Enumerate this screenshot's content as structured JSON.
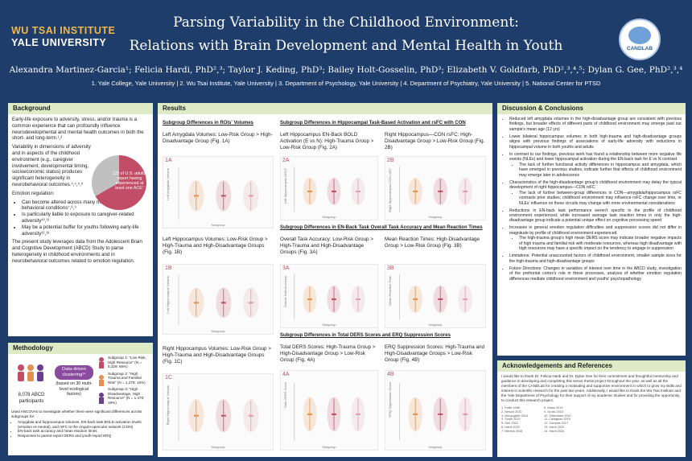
{
  "header": {
    "inst_line1": "WU TSAI INSTITUTE",
    "inst_line2": "YALE UNIVERSITY",
    "title_line1": "Parsing Variability in the Childhood Environment:",
    "title_line2": "Relations with Brain Development and Mental Health in Youth",
    "authors": "Alexandra Martinez-Garcia¹; Felicia Hardi, PhD²,³; Taylor J. Keding, PhD³; Bailey Holt-Gosselin, PhD³; Elizabeth V. Goldfarb, PhD²,³,⁴,⁵; Dylan G. Gee, PhD²,³,⁴",
    "affiliations": "1. Yale College, Yale University | 2. Wu Tsai Institute, Yale University | 3. Department of Psychology, Yale University | 4. Department of Psychiatry, Yale University | 5. National Center for PTSD",
    "logo_text": "CANDLAB"
  },
  "background": {
    "heading": "Background",
    "p1": "Early-life exposure to adversity, stress, and/or trauma is a common experience that can profoundly influence neurodevelopmental and mental health outcomes in both the short- and long-term.¹,²",
    "p2": "Variability in dimensions of adversity and in aspects of the childhood environment (e.g., caregiver involvement, developmental timing, socioeconomic status) produces significant heterogeneity in neurobehavioral outcomes.³,⁴,⁵,⁶",
    "pie_label": "2/3 of U.S. adults report having experienced at least one ACE⁷",
    "reg_heading": "Emotion regulation:",
    "bullets": [
      "Can become altered across many mental health and behavioral conditions⁷,⁸,⁹",
      "Is particularly liable to exposure to caregiver-related adversity¹⁰,¹¹",
      "May be a potential buffer for youths following early-life adversity¹²,¹³"
    ],
    "p3": "The present study leverages data from the Adolescent Brain and Cognitive Development (ABCD) Study to parse heterogeneity in childhood environments and in neurobehavioral outcomes related to emotion regulation."
  },
  "methodology": {
    "heading": "Methodology",
    "participants": "8,078 ABCD participants",
    "clustering": "Data-driven clustering¹⁴",
    "based_on": "(based on 30 multi-level ecological factors)",
    "subgroups": [
      "Subgroup 1: \"Low Risk, High Resource\" (N = 5,329; 66%)",
      "Subgroup 2: \"High Trauma and Familial Risk\" (N = 1,279; 16%)",
      "Subgroup 3: \"High Disadvantage, High Resource\" (N = 1,470; 18%)"
    ],
    "used": "Used ANCOVAs to investigate whether there were significant differences across subgroups for:",
    "items": [
      "Amygdala and hippocampus volumes, EN-back task BOLD activation levels (emotion vs neutral), and rsFC to the cingulo-opercular network (CON)",
      "EN-back task accuracy and mean reaction times",
      "Responses to parent-report DERS and youth-report ERQ"
    ]
  },
  "results": {
    "heading": "Results",
    "sec_rois": "Subgroup Differences in ROIs' Volumes",
    "sec_hippo": "Subgroup Differences in Hippocampal Task-Based Activation and rsFC with CON",
    "sec_enback": "Subgroup Differences in EN-Back Task Overall Task Accuracy and Mean Reaction Times",
    "sec_ders": "Subgroup Differences in Total DERS Scores and ERQ Suppression Scores",
    "figures": [
      {
        "id": "1A",
        "title": "Left Amygdala Volumes: Low-Risk Group > High-Disadvantage Group (Fig. 1A)",
        "ylabel": "Left Amygdala Volume",
        "xlabel": "Subgroup"
      },
      {
        "id": "1B",
        "title": "Left Hippocampus Volumes: Low-Risk Group > High-Trauma and High-Disadvantage Groups (Fig. 1B)",
        "ylabel": "Left Hippocampus Volume",
        "xlabel": "Subgroup"
      },
      {
        "id": "1C",
        "title": "Right Hippocampus Volumes: Low-Risk Group > High-Trauma and High-Disadvantage Groups (Fig. 1C)",
        "ylabel": "Right Hippocampus Volume",
        "xlabel": "Subgroup"
      },
      {
        "id": "2A",
        "title": "Left Hippocampus EN-Back BOLD Activation (E vs N): High-Trauma Group > Low-Risk Group (Fig. 2A)",
        "ylabel": "Left Hippocampus BOLD",
        "xlabel": "Subgroup"
      },
      {
        "id": "2B",
        "title": "Right Hippocampus—CON rsFC: High-Disadvantage Group > Low-Risk Group (Fig. 2B)",
        "ylabel": "Right Hippocampus-CON rsFC",
        "xlabel": "Subgroup"
      },
      {
        "id": "3A",
        "title": "Overall Task Accuracy: Low-Risk Group > High-Trauma and High-Disadvantage Groups (Fig. 3A)",
        "ylabel": "Overall Task Accuracy",
        "xlabel": "Subgroup"
      },
      {
        "id": "3B",
        "title": "Mean Reaction Times: High-Disadvantage Group > Low-Risk Group (Fig. 3B)",
        "ylabel": "Mean Reaction Time",
        "xlabel": "Subgroup"
      },
      {
        "id": "4A",
        "title": "Total DERS Scores: High-Trauma Group > High-Disadvantage Group > Low-Risk Group (Fig. 4A)",
        "ylabel": "Total DERS Score",
        "xlabel": "Subgroup"
      },
      {
        "id": "4B",
        "title": "ERQ Suppression Scores: High-Trauma and High-Disadvantage Groups > Low-Risk Group (Fig. 4B)",
        "ylabel": "ERQ Suppression Score",
        "xlabel": "Subgroup"
      }
    ]
  },
  "discussion": {
    "heading": "Discussion & Conclusions",
    "items": [
      {
        "text": "Reduced left amygdala volumes in the high-disadvantage group are consistent with previous findings, but broader effects of different parts of childhood environment may emerge past our sample's mean age (12 yrs)",
        "sub": []
      },
      {
        "text": "Lower bilateral hippocampus volumes in both high-trauma and high-disadvantage groups aligns with previous findings of associations of early-life adversity with reductions in hippocampal volume in both youths and adults",
        "sub": []
      },
      {
        "text": "In contrast to our findings, previous work has found a relationship between more negative life events (NLEs) and lower hippocampal activation during the EN-back task for E vs N contrast",
        "sub": [
          "The lack of further functional activity differences in hippocampus and amygdala, which have emerged in previous studies, indicate further that effects of childhood environment may emerge later in adolescence"
        ]
      },
      {
        "text": "Characteristics of the high-disadvantage group's childhood environment may delay the typical development of right hippocampus—CON rsFC",
        "sub": [
          "The lack of further between-group differences in CON—amygdala/hippocampus rsFC contrasts prior studies; childhood environment may influence rsFC change over time, or NLEs' influence on these circuits may change with more environmental considerations"
        ]
      },
      {
        "text": "Reductions in EN-back task performance weren't specific to the profile of childhood environment experienced, while increased average task reaction times in only the high-disadvantage group indicate a potential unique effect on cognitive processing speed",
        "sub": []
      },
      {
        "text": "Increases in general emotion regulation difficulties and suppression scores did not differ in magnitude by profile of childhood environment experienced",
        "sub": [
          "The high-trauma group's high mean DERS score may indicate broader negative impacts of high trauma and familial risk with moderate resources, whereas high disadvantage with high resources may have a specific impact on the tendency to engage in suppression"
        ]
      },
      {
        "text": "Limitations: Potential unaccounted factors of childhood environment, smaller sample sizes for the high-trauma and high-disadvantage groups",
        "sub": []
      },
      {
        "text": "Future Directions: Changes in variables of interest over time in the ABCD study, investigation of the prefrontal cortex's role in these processes, analysis of whether emotion regulation differences mediate childhood environment and youths' psychopathology",
        "sub": []
      }
    ]
  },
  "acknowledgements": {
    "heading": "Acknowledgements and References",
    "text": "I would like to thank Dr. Felicia Hardi and Dr. Dylan Gee for their commitment and thoughtful mentorship and guidance in developing and completing this senior thesis project throughout the year, as well as all the members of the CANDLab for creating a motivating and supportive environment in which to grow my skills and interest in scientific research for the past two years. Additionally, I would like to thank the Wu Tsai Institute and the Yale Department of Psychology for their support of my academic studies and for providing the opportunity to conduct this research project.",
    "refs_left": [
      "1. Felitti 1998",
      "2. Nelson 2020",
      "3. McLaughlin 2014",
      "4. Smith 2019",
      "5. Gee 2022",
      "6. Hardi 2023",
      "7. Merrick 2018"
    ],
    "refs_right": [
      "8. Aldao 2010",
      "9. Gross 2015",
      "10. Tottenham 2010",
      "11. Callaghan 2019",
      "12. Compas 2017",
      "13. Hardi 2022",
      "14. Hardi 2024"
    ]
  },
  "colors": {
    "navy": "#1f3d6b",
    "header_green": "#dcebc6",
    "accent_rose": "#c14d66",
    "gold": "#f0b84a"
  }
}
